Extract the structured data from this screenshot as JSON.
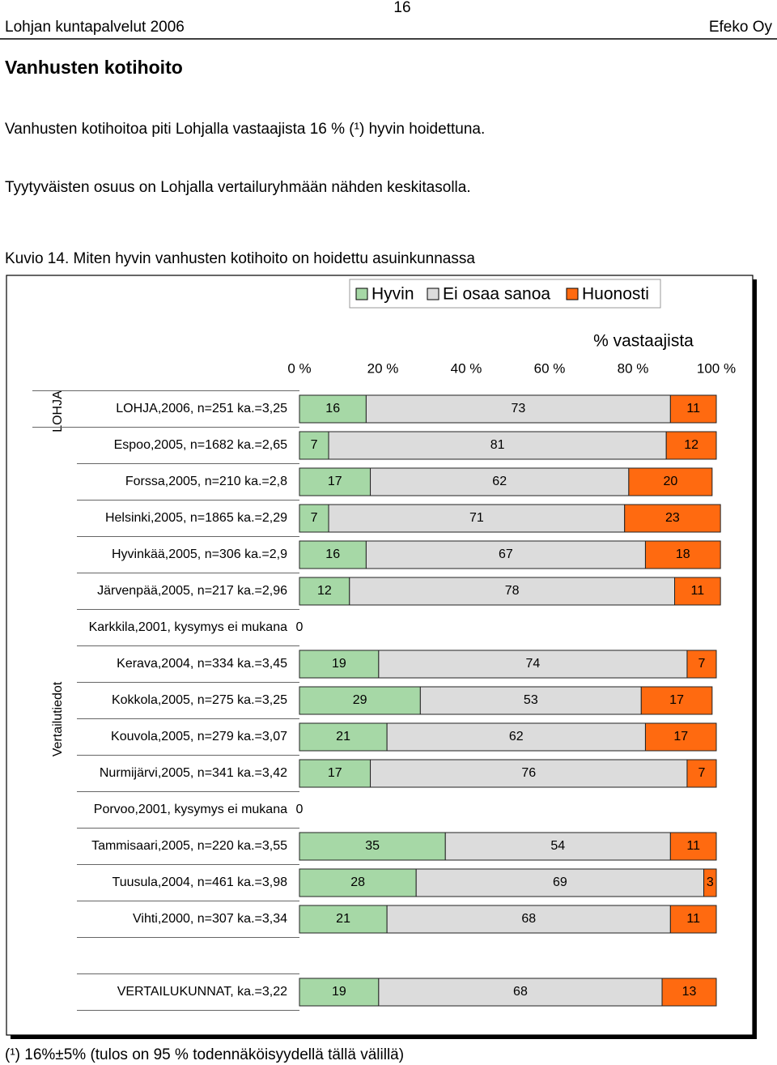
{
  "header": {
    "left": "Lohjan kuntapalvelut 2006",
    "page_number": "16",
    "right": "Efeko Oy"
  },
  "title": "Vanhusten kotihoito",
  "paragraphs": [
    "Vanhusten kotihoitoa piti Lohjalla vastaajista 16 % (¹) hyvin hoidettuna.",
    "Tyytyväisten osuus on Lohjalla vertailuryhmään nähden keskitasolla."
  ],
  "figure_caption": "Kuvio 14. Miten hyvin vanhusten kotihoito on hoidettu asuinkunnassa",
  "chart_data": {
    "type": "stacked-bar",
    "orientation": "horizontal",
    "axis_title": "% vastaajista",
    "groups": [
      "LOHJA",
      "Vertailutiedot"
    ],
    "categories": [
      "LOHJA,2006, n=251 ka.=3,25",
      "Espoo,2005, n=1682 ka.=2,65",
      "Forssa,2005, n=210 ka.=2,8",
      "Helsinki,2005, n=1865 ka.=2,29",
      "Hyvinkää,2005, n=306 ka.=2,9",
      "Järvenpää,2005, n=217 ka.=2,96",
      "Karkkila,2001, kysymys ei mukana",
      "Kerava,2004, n=334 ka.=3,45",
      "Kokkola,2005, n=275 ka.=3,25",
      "Kouvola,2005, n=279 ka.=3,07",
      "Nurmijärvi,2005, n=341 ka.=3,42",
      "Porvoo,2001, kysymys ei mukana",
      "Tammisaari,2005, n=220 ka.=3,55",
      "Tuusula,2004, n=461 ka.=3,98",
      "Vihti,2000, n=307 ka.=3,34",
      null,
      "VERTAILUKUNNAT, ka.=3,22"
    ],
    "series": [
      {
        "name": "Hyvin",
        "color": "#a6d8a6",
        "values": [
          16,
          7,
          17,
          7,
          16,
          12,
          0,
          19,
          29,
          21,
          17,
          0,
          35,
          28,
          21,
          null,
          19
        ]
      },
      {
        "name": "Ei osaa sanoa",
        "color": "#dcdcdc",
        "values": [
          73,
          81,
          62,
          71,
          67,
          78,
          null,
          74,
          53,
          62,
          76,
          null,
          54,
          69,
          68,
          null,
          68
        ]
      },
      {
        "name": "Huonosti",
        "color": "#ff6a10",
        "values": [
          11,
          12,
          20,
          23,
          18,
          11,
          null,
          7,
          17,
          17,
          7,
          null,
          11,
          3,
          11,
          null,
          13
        ]
      }
    ],
    "xlim": [
      0,
      100
    ],
    "xticks": [
      {
        "value": 0,
        "label": "0 %"
      },
      {
        "value": 20,
        "label": "20 %"
      },
      {
        "value": 40,
        "label": "40 %"
      },
      {
        "value": 60,
        "label": "60 %"
      },
      {
        "value": 80,
        "label": "80 %"
      },
      {
        "value": 100,
        "label": "100 %"
      }
    ],
    "legend": "top-right"
  },
  "footnote": "(¹) 16%±5% (tulos on 95 % todennäköisyydellä tällä välillä)"
}
